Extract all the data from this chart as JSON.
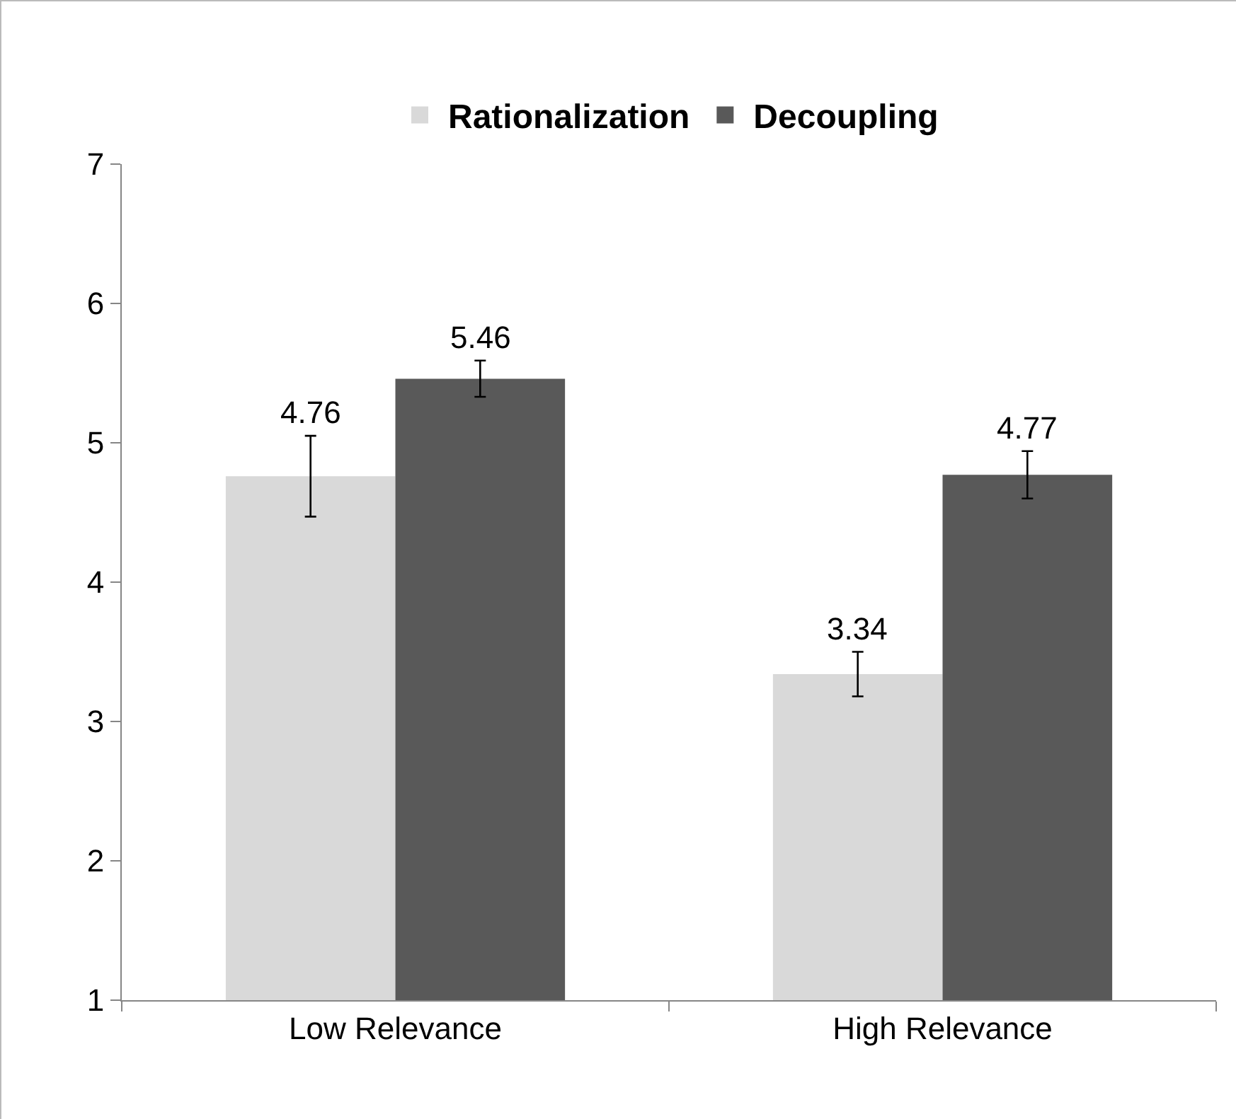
{
  "chart_data": {
    "type": "bar",
    "categories": [
      "Low Relevance",
      "High Relevance"
    ],
    "series": [
      {
        "name": "Rationalization",
        "color": "#d9d9d9",
        "values": [
          4.76,
          3.34
        ],
        "errors": [
          0.29,
          0.16
        ]
      },
      {
        "name": "Decoupling",
        "color": "#595959",
        "values": [
          5.46,
          4.77
        ],
        "errors": [
          0.13,
          0.17
        ]
      }
    ],
    "ylim": [
      1,
      7
    ],
    "yticks": [
      1,
      2,
      3,
      4,
      5,
      6,
      7
    ],
    "grid": false,
    "legend": "top",
    "data_labels": true
  }
}
